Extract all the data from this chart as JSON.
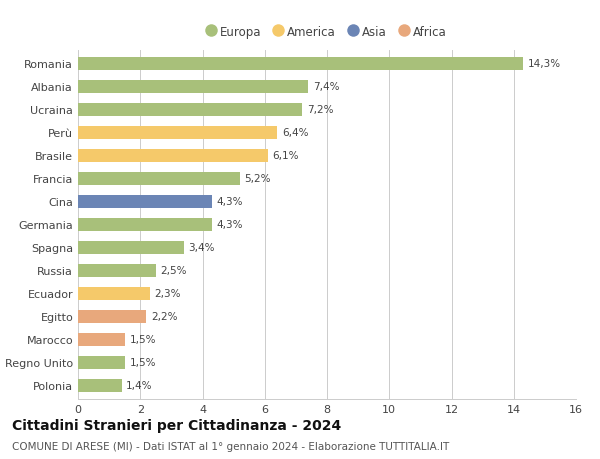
{
  "categories": [
    "Romania",
    "Albania",
    "Ucraina",
    "Perù",
    "Brasile",
    "Francia",
    "Cina",
    "Germania",
    "Spagna",
    "Russia",
    "Ecuador",
    "Egitto",
    "Marocco",
    "Regno Unito",
    "Polonia"
  ],
  "values": [
    14.3,
    7.4,
    7.2,
    6.4,
    6.1,
    5.2,
    4.3,
    4.3,
    3.4,
    2.5,
    2.3,
    2.2,
    1.5,
    1.5,
    1.4
  ],
  "colors": [
    "#a8c07a",
    "#a8c07a",
    "#a8c07a",
    "#f5c96a",
    "#f5c96a",
    "#a8c07a",
    "#6b85b5",
    "#a8c07a",
    "#a8c07a",
    "#a8c07a",
    "#f5c96a",
    "#e8a87c",
    "#e8a87c",
    "#a8c07a",
    "#a8c07a"
  ],
  "legend": [
    {
      "label": "Europa",
      "color": "#a8c07a"
    },
    {
      "label": "America",
      "color": "#f5c96a"
    },
    {
      "label": "Asia",
      "color": "#6b85b5"
    },
    {
      "label": "Africa",
      "color": "#e8a87c"
    }
  ],
  "xlim": [
    0,
    16
  ],
  "xticks": [
    0,
    2,
    4,
    6,
    8,
    10,
    12,
    14,
    16
  ],
  "title": "Cittadini Stranieri per Cittadinanza - 2024",
  "subtitle": "COMUNE DI ARESE (MI) - Dati ISTAT al 1° gennaio 2024 - Elaborazione TUTTITALIA.IT",
  "title_fontsize": 10,
  "subtitle_fontsize": 7.5,
  "label_fontsize": 8,
  "bar_height": 0.55,
  "grid_color": "#cccccc",
  "background_color": "#ffffff",
  "value_label_fontsize": 7.5
}
